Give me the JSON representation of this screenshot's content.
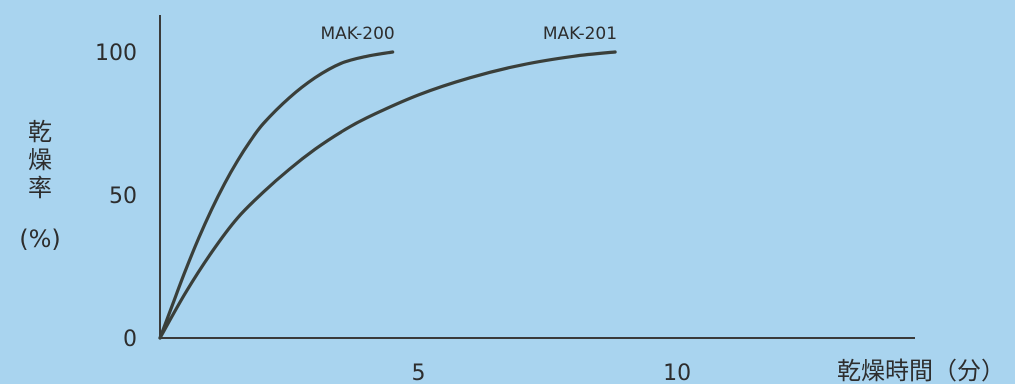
{
  "colors": {
    "background": "#a9d4ef",
    "axis": "#3a3a3a",
    "curve": "#3a3f3a",
    "text": "#2d2d2d"
  },
  "chart_data": {
    "type": "line",
    "title": "",
    "xlabel": "乾燥時間（分）",
    "ylabel": "乾燥率",
    "ylabel_unit": "(%)",
    "xlim": [
      0,
      14.6
    ],
    "ylim": [
      0,
      100
    ],
    "x_ticks": [
      5,
      10
    ],
    "y_ticks": [
      0,
      50,
      100
    ],
    "grid": false,
    "legend": "none",
    "series": [
      {
        "name": "MAK-200",
        "x": [
          0,
          0.25,
          0.5,
          0.75,
          1.0,
          1.25,
          1.5,
          1.75,
          2.0,
          2.5,
          3.0,
          3.5,
          4.0,
          4.5
        ],
        "y": [
          0,
          12,
          24,
          35,
          45,
          54,
          62,
          69,
          75,
          84,
          91,
          96,
          98.5,
          100
        ]
      },
      {
        "name": "MAK-201",
        "x": [
          0,
          0.5,
          1.0,
          1.5,
          2.0,
          2.5,
          3.0,
          3.5,
          4.0,
          5.0,
          6.0,
          7.0,
          8.0,
          8.8
        ],
        "y": [
          0,
          16,
          30,
          42,
          51,
          59,
          66,
          72,
          77,
          85,
          91,
          95.5,
          98.5,
          100
        ]
      }
    ]
  }
}
